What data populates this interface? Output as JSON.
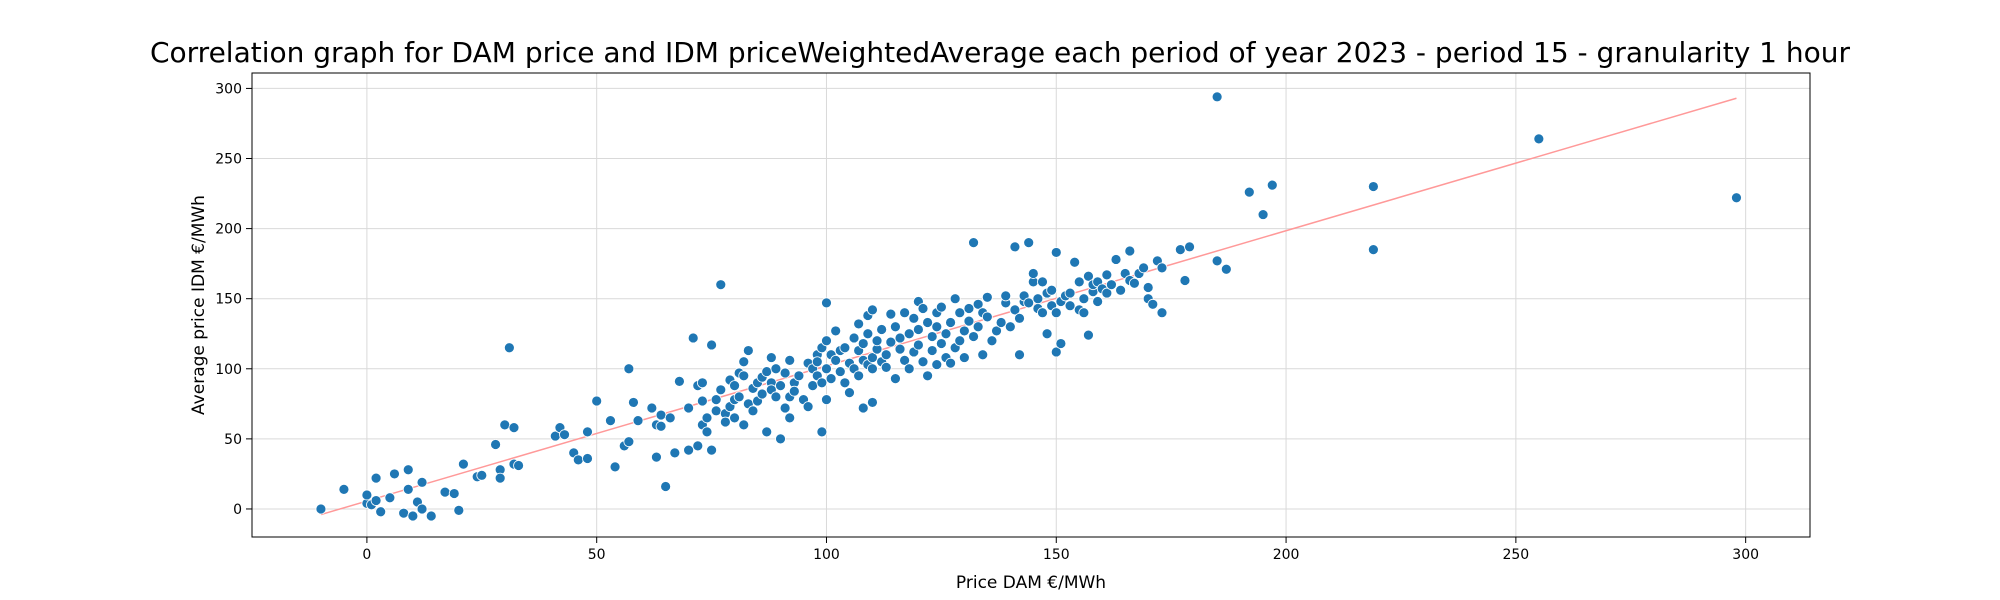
{
  "chart_data": {
    "type": "scatter",
    "title": "Correlation graph for DAM price and IDM priceWeightedAverage each period of year 2023 - period 15 - granularity 1 hour",
    "xlabel": "Price DAM €/MWh",
    "ylabel": "Average price IDM €/MWh",
    "xlim": [
      -25,
      314
    ],
    "ylim": [
      -20,
      311
    ],
    "xticks": [
      0,
      50,
      100,
      150,
      200,
      250,
      300
    ],
    "yticks": [
      0,
      50,
      100,
      150,
      200,
      250,
      300
    ],
    "grid": true,
    "legend": "none",
    "colors": {
      "points": "#1f77b4",
      "point_edge": "#ffffff",
      "trend_line": "#ff9999",
      "grid": "#d9d9d9"
    },
    "trend_line": {
      "x": [
        -10,
        298
      ],
      "y": [
        -4,
        293
      ]
    },
    "series": [
      {
        "points": [
          [
            -10,
            0
          ],
          [
            -5,
            14
          ],
          [
            0,
            4
          ],
          [
            0,
            10
          ],
          [
            1,
            3
          ],
          [
            2,
            6
          ],
          [
            2,
            22
          ],
          [
            3,
            -2
          ],
          [
            5,
            8
          ],
          [
            6,
            25
          ],
          [
            8,
            -3
          ],
          [
            9,
            28
          ],
          [
            9,
            14
          ],
          [
            10,
            -5
          ],
          [
            11,
            5
          ],
          [
            12,
            19
          ],
          [
            12,
            0
          ],
          [
            14,
            -5
          ],
          [
            17,
            12
          ],
          [
            19,
            11
          ],
          [
            20,
            -1
          ],
          [
            21,
            32
          ],
          [
            24,
            23
          ],
          [
            25,
            24
          ],
          [
            28,
            46
          ],
          [
            29,
            28
          ],
          [
            29,
            22
          ],
          [
            30,
            60
          ],
          [
            31,
            115
          ],
          [
            32,
            58
          ],
          [
            32,
            32
          ],
          [
            33,
            31
          ],
          [
            41,
            52
          ],
          [
            42,
            58
          ],
          [
            43,
            53
          ],
          [
            45,
            40
          ],
          [
            46,
            35
          ],
          [
            48,
            55
          ],
          [
            48,
            36
          ],
          [
            50,
            77
          ],
          [
            53,
            63
          ],
          [
            54,
            30
          ],
          [
            56,
            45
          ],
          [
            57,
            48
          ],
          [
            57,
            100
          ],
          [
            58,
            76
          ],
          [
            59,
            63
          ],
          [
            62,
            72
          ],
          [
            63,
            37
          ],
          [
            63,
            60
          ],
          [
            64,
            67
          ],
          [
            64,
            59
          ],
          [
            65,
            16
          ],
          [
            66,
            65
          ],
          [
            67,
            40
          ],
          [
            68,
            91
          ],
          [
            70,
            42
          ],
          [
            70,
            72
          ],
          [
            71,
            122
          ],
          [
            72,
            45
          ],
          [
            72,
            88
          ],
          [
            73,
            60
          ],
          [
            73,
            77
          ],
          [
            73,
            90
          ],
          [
            74,
            65
          ],
          [
            74,
            55
          ],
          [
            75,
            117
          ],
          [
            75,
            42
          ],
          [
            76,
            70
          ],
          [
            76,
            78
          ],
          [
            77,
            85
          ],
          [
            77,
            160
          ],
          [
            78,
            68
          ],
          [
            78,
            62
          ],
          [
            79,
            92
          ],
          [
            79,
            73
          ],
          [
            80,
            78
          ],
          [
            80,
            88
          ],
          [
            80,
            65
          ],
          [
            81,
            80
          ],
          [
            81,
            97
          ],
          [
            82,
            95
          ],
          [
            82,
            105
          ],
          [
            82,
            60
          ],
          [
            83,
            113
          ],
          [
            83,
            75
          ],
          [
            84,
            86
          ],
          [
            84,
            70
          ],
          [
            85,
            90
          ],
          [
            85,
            77
          ],
          [
            86,
            94
          ],
          [
            86,
            82
          ],
          [
            87,
            98
          ],
          [
            87,
            55
          ],
          [
            88,
            90
          ],
          [
            88,
            108
          ],
          [
            88,
            85
          ],
          [
            89,
            80
          ],
          [
            89,
            100
          ],
          [
            90,
            88
          ],
          [
            90,
            50
          ],
          [
            91,
            97
          ],
          [
            91,
            72
          ],
          [
            92,
            106
          ],
          [
            92,
            80
          ],
          [
            92,
            65
          ],
          [
            93,
            90
          ],
          [
            93,
            84
          ],
          [
            94,
            95
          ],
          [
            95,
            78
          ],
          [
            96,
            104
          ],
          [
            96,
            73
          ],
          [
            97,
            100
          ],
          [
            97,
            88
          ],
          [
            98,
            110
          ],
          [
            98,
            95
          ],
          [
            98,
            105
          ],
          [
            99,
            90
          ],
          [
            99,
            55
          ],
          [
            99,
            115
          ],
          [
            100,
            100
          ],
          [
            100,
            78
          ],
          [
            100,
            120
          ],
          [
            100,
            147
          ],
          [
            101,
            93
          ],
          [
            101,
            110
          ],
          [
            102,
            106
          ],
          [
            102,
            127
          ],
          [
            103,
            98
          ],
          [
            103,
            113
          ],
          [
            104,
            115
          ],
          [
            104,
            90
          ],
          [
            105,
            104
          ],
          [
            105,
            83
          ],
          [
            106,
            122
          ],
          [
            106,
            100
          ],
          [
            107,
            95
          ],
          [
            107,
            113
          ],
          [
            107,
            132
          ],
          [
            108,
            106
          ],
          [
            108,
            118
          ],
          [
            108,
            72
          ],
          [
            109,
            103
          ],
          [
            109,
            125
          ],
          [
            109,
            138
          ],
          [
            110,
            108
          ],
          [
            110,
            100
          ],
          [
            110,
            142
          ],
          [
            110,
            76
          ],
          [
            111,
            114
          ],
          [
            111,
            120
          ],
          [
            112,
            105
          ],
          [
            112,
            128
          ],
          [
            113,
            110
          ],
          [
            113,
            101
          ],
          [
            114,
            119
          ],
          [
            114,
            139
          ],
          [
            115,
            130
          ],
          [
            115,
            93
          ],
          [
            116,
            122
          ],
          [
            116,
            114
          ],
          [
            117,
            140
          ],
          [
            117,
            106
          ],
          [
            118,
            125
          ],
          [
            118,
            100
          ],
          [
            119,
            136
          ],
          [
            119,
            112
          ],
          [
            120,
            117
          ],
          [
            120,
            148
          ],
          [
            120,
            128
          ],
          [
            121,
            143
          ],
          [
            121,
            105
          ],
          [
            122,
            95
          ],
          [
            122,
            133
          ],
          [
            123,
            123
          ],
          [
            123,
            113
          ],
          [
            124,
            140
          ],
          [
            124,
            130
          ],
          [
            124,
            103
          ],
          [
            125,
            118
          ],
          [
            125,
            144
          ],
          [
            126,
            108
          ],
          [
            126,
            125
          ],
          [
            127,
            133
          ],
          [
            127,
            104
          ],
          [
            128,
            150
          ],
          [
            128,
            115
          ],
          [
            129,
            120
          ],
          [
            129,
            140
          ],
          [
            130,
            127
          ],
          [
            130,
            108
          ],
          [
            131,
            143
          ],
          [
            131,
            134
          ],
          [
            132,
            190
          ],
          [
            132,
            123
          ],
          [
            133,
            130
          ],
          [
            133,
            146
          ],
          [
            134,
            110
          ],
          [
            134,
            140
          ],
          [
            135,
            137
          ],
          [
            135,
            151
          ],
          [
            136,
            120
          ],
          [
            137,
            127
          ],
          [
            138,
            133
          ],
          [
            139,
            147
          ],
          [
            139,
            152
          ],
          [
            140,
            130
          ],
          [
            141,
            142
          ],
          [
            141,
            187
          ],
          [
            142,
            110
          ],
          [
            142,
            136
          ],
          [
            143,
            148
          ],
          [
            143,
            152
          ],
          [
            144,
            147
          ],
          [
            144,
            190
          ],
          [
            145,
            162
          ],
          [
            145,
            168
          ],
          [
            146,
            143
          ],
          [
            146,
            150
          ],
          [
            147,
            140
          ],
          [
            147,
            162
          ],
          [
            148,
            154
          ],
          [
            148,
            125
          ],
          [
            149,
            145
          ],
          [
            149,
            156
          ],
          [
            150,
            140
          ],
          [
            150,
            112
          ],
          [
            150,
            183
          ],
          [
            151,
            148
          ],
          [
            151,
            118
          ],
          [
            152,
            152
          ],
          [
            153,
            154
          ],
          [
            153,
            145
          ],
          [
            154,
            176
          ],
          [
            155,
            142
          ],
          [
            155,
            162
          ],
          [
            156,
            150
          ],
          [
            156,
            140
          ],
          [
            157,
            166
          ],
          [
            157,
            124
          ],
          [
            158,
            155
          ],
          [
            158,
            160
          ],
          [
            159,
            162
          ],
          [
            159,
            148
          ],
          [
            160,
            157
          ],
          [
            161,
            154
          ],
          [
            161,
            167
          ],
          [
            162,
            160
          ],
          [
            163,
            178
          ],
          [
            164,
            156
          ],
          [
            165,
            168
          ],
          [
            166,
            163
          ],
          [
            166,
            184
          ],
          [
            167,
            161
          ],
          [
            168,
            168
          ],
          [
            169,
            172
          ],
          [
            170,
            150
          ],
          [
            170,
            158
          ],
          [
            171,
            146
          ],
          [
            172,
            177
          ],
          [
            172,
            177
          ],
          [
            173,
            172
          ],
          [
            173,
            140
          ],
          [
            177,
            185
          ],
          [
            178,
            163
          ],
          [
            179,
            187
          ],
          [
            185,
            294
          ],
          [
            185,
            177
          ],
          [
            187,
            171
          ],
          [
            192,
            226
          ],
          [
            195,
            210
          ],
          [
            197,
            231
          ],
          [
            219,
            230
          ],
          [
            219,
            185
          ],
          [
            255,
            264
          ],
          [
            298,
            222
          ]
        ]
      }
    ]
  }
}
